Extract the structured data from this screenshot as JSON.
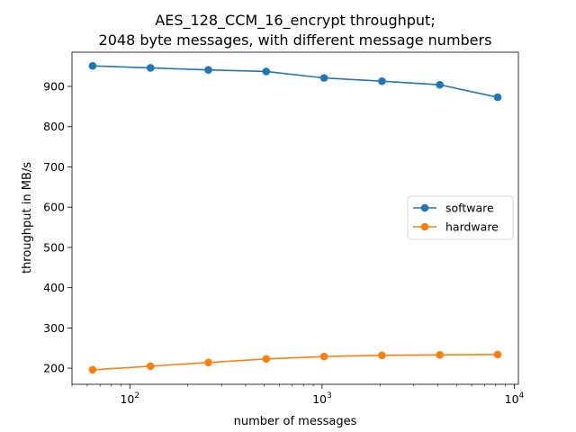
{
  "chart_data": {
    "type": "line",
    "title_lines": [
      "AES_128_CCM_16_encrypt throughput;",
      "2048 byte messages, with different message numbers"
    ],
    "xlabel": "number of messages",
    "ylabel": "throughput in MB/s",
    "xscale": "log",
    "xlim": [
      50,
      10500
    ],
    "ylim": [
      160,
      985
    ],
    "xticks": [
      {
        "value": 100,
        "base": "10",
        "exp": "2"
      },
      {
        "value": 1000,
        "base": "10",
        "exp": "3"
      },
      {
        "value": 10000,
        "base": "10",
        "exp": "4"
      }
    ],
    "yticks": [
      200,
      300,
      400,
      500,
      600,
      700,
      800,
      900
    ],
    "x": [
      64,
      128,
      256,
      512,
      1024,
      2048,
      4096,
      8192
    ],
    "series": [
      {
        "name": "software",
        "color": "#1f77b4",
        "values": [
          951,
          946,
          941,
          937,
          921,
          913,
          904,
          873
        ]
      },
      {
        "name": "hardware",
        "color": "#ff7f0e",
        "values": [
          196,
          205,
          214,
          223,
          229,
          232,
          233,
          234
        ]
      }
    ],
    "legend_position": "center-right",
    "grid": false
  }
}
